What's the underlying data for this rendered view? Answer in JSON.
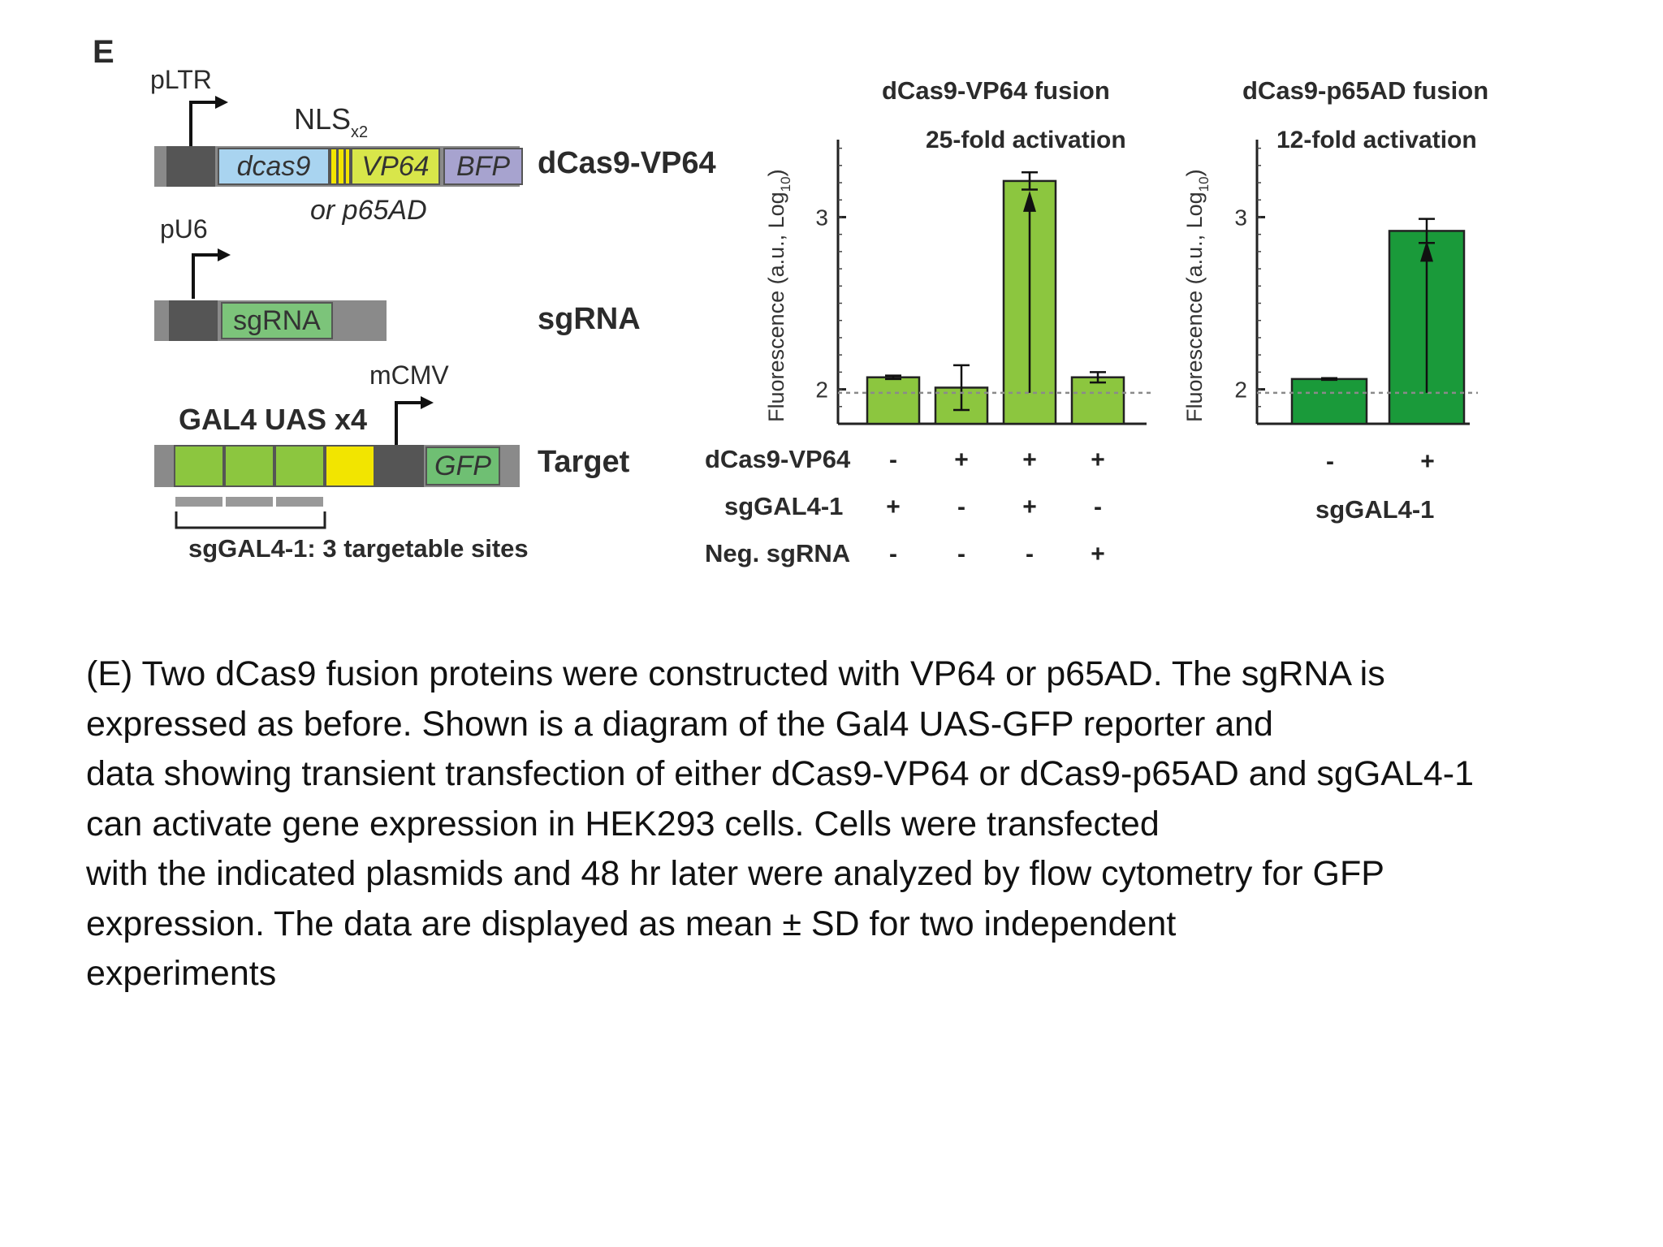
{
  "panel_label": "E",
  "constructs": {
    "promoter1": "pLTR",
    "nls": "NLS",
    "nls_sub": "x2",
    "gene_dcas9": "dcas9",
    "gene_vp64": "VP64",
    "gene_bfp": "BFP",
    "alt_domain": "or p65AD",
    "construct1_name": "dCas9-VP64",
    "promoter2": "pU6",
    "gene_sgrna": "sgRNA",
    "construct2_name": "sgRNA",
    "promoter3": "mCMV",
    "uas_label": "GAL4 UAS x4",
    "gene_gfp": "GFP",
    "construct3_name": "Target",
    "sites_label": "sgGAL4-1: 3 targetable sites"
  },
  "colors": {
    "light_green": "#8cc63f",
    "dark_green": "#1a9a3a",
    "yellow": "#f2e500",
    "light_blue": "#a9d4f0",
    "lavender": "#a7a3cf",
    "sgrna_green": "#7cc47a",
    "grey": "#8a8a8a",
    "dark_grey": "#555555"
  },
  "chart_data": [
    {
      "type": "bar",
      "title": "dCas9-VP64 fusion",
      "annotation": "25-fold activation",
      "ylabel": "Fluorescence (a.u., Log",
      "ylabel_sub": "10",
      "ylabel_close": ")",
      "yticks": [
        "2",
        "3"
      ],
      "ylim": [
        1.8,
        3.45
      ],
      "baseline": 1.98,
      "values": [
        2.07,
        2.01,
        3.21,
        2.07
      ],
      "errors": [
        0.01,
        0.13,
        0.05,
        0.03
      ],
      "bar_color": "#8cc63f",
      "row_labels": [
        "dCas9-VP64",
        "sgGAL4-1",
        "Neg. sgRNA"
      ],
      "conditions": [
        [
          "-",
          "+",
          "+",
          "+"
        ],
        [
          "+",
          "-",
          "+",
          "-"
        ],
        [
          "-",
          "-",
          "-",
          "+"
        ]
      ]
    },
    {
      "type": "bar",
      "title": "dCas9-p65AD fusion",
      "annotation": "12-fold activation",
      "ylabel": "Fluorescence (a.u., Log",
      "ylabel_sub": "10",
      "ylabel_close": ")",
      "yticks": [
        "2",
        "3"
      ],
      "ylim": [
        1.8,
        3.45
      ],
      "baseline": 1.98,
      "values": [
        2.06,
        2.92
      ],
      "errors": [
        0.005,
        0.07
      ],
      "bar_color": "#1a9a3a",
      "conditions": [
        [
          "-",
          "+"
        ]
      ],
      "xlabel": "sgGAL4-1"
    }
  ],
  "caption": [
    "(E) Two dCas9 fusion proteins were constructed with VP64 or p65AD. The sgRNA is",
    "expressed as before. Shown is a diagram of the Gal4 UAS-GFP reporter and",
    "data showing transient transfection of either dCas9-VP64 or dCas9-p65AD and sgGAL4-1",
    "can activate gene expression in HEK293 cells. Cells were transfected",
    "with the indicated plasmids and 48 hr later were analyzed by flow cytometry for GFP",
    "expression. The data are displayed as mean ± SD for two independent",
    "experiments"
  ]
}
